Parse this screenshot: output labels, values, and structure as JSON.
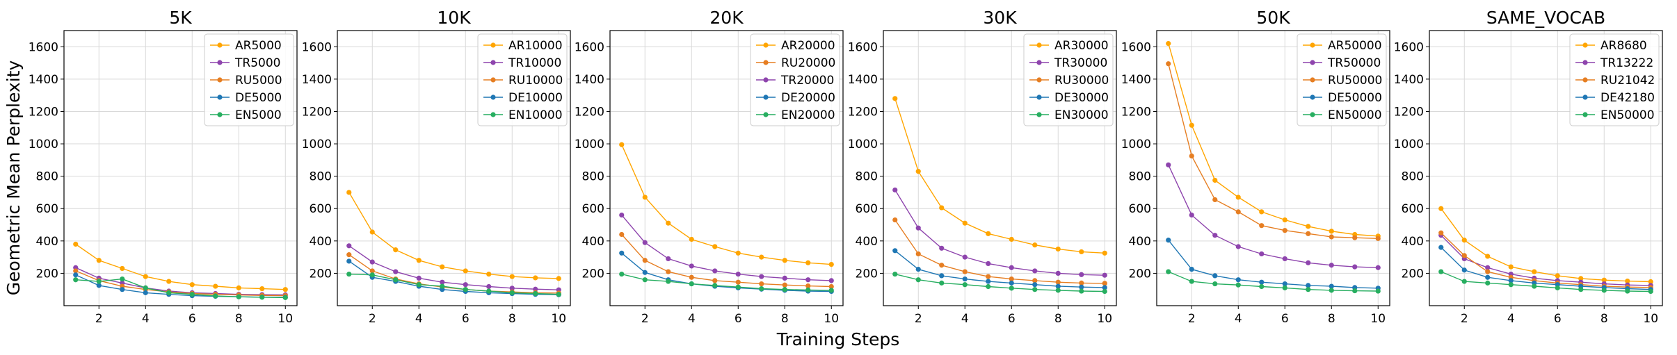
{
  "figure": {
    "ylabel": "Geometric Mean Perplexity",
    "xlabel": "Training Steps"
  },
  "chart_data": [
    {
      "type": "line",
      "title": "5K",
      "x": [
        1,
        2,
        3,
        4,
        5,
        6,
        7,
        8,
        9,
        10
      ],
      "xticks": [
        2,
        4,
        6,
        8,
        10
      ],
      "yticks": [
        200,
        400,
        600,
        800,
        1000,
        1200,
        1400,
        1600
      ],
      "xlim": [
        0.5,
        10.5
      ],
      "ylim": [
        0,
        1700
      ],
      "grid": true,
      "legend": "top-right",
      "series": [
        {
          "name": "AR5000",
          "color": "#ffa500",
          "values": [
            380,
            280,
            230,
            180,
            150,
            130,
            120,
            110,
            105,
            100
          ]
        },
        {
          "name": "TR5000",
          "color": "#8e44ad",
          "values": [
            235,
            170,
            140,
            110,
            90,
            80,
            75,
            70,
            68,
            67
          ]
        },
        {
          "name": "RU5000",
          "color": "#e67e22",
          "values": [
            215,
            155,
            120,
            100,
            85,
            75,
            70,
            66,
            63,
            62
          ]
        },
        {
          "name": "DE5000",
          "color": "#1f77b4",
          "values": [
            190,
            125,
            100,
            80,
            70,
            62,
            58,
            55,
            53,
            52
          ]
        },
        {
          "name": "EN5000",
          "color": "#27ae60",
          "values": [
            160,
            150,
            165,
            110,
            80,
            70,
            60,
            55,
            52,
            50
          ]
        }
      ]
    },
    {
      "type": "line",
      "title": "10K",
      "x": [
        1,
        2,
        3,
        4,
        5,
        6,
        7,
        8,
        9,
        10
      ],
      "xticks": [
        2,
        4,
        6,
        8,
        10
      ],
      "yticks": [
        200,
        400,
        600,
        800,
        1000,
        1200,
        1400,
        1600
      ],
      "xlim": [
        0.5,
        10.5
      ],
      "ylim": [
        0,
        1700
      ],
      "grid": true,
      "legend": "top-right",
      "series": [
        {
          "name": "AR10000",
          "color": "#ffa500",
          "values": [
            700,
            455,
            345,
            280,
            240,
            215,
            195,
            180,
            172,
            168
          ]
        },
        {
          "name": "TR10000",
          "color": "#8e44ad",
          "values": [
            370,
            270,
            210,
            170,
            145,
            130,
            118,
            108,
            102,
            98
          ]
        },
        {
          "name": "RU10000",
          "color": "#e67e22",
          "values": [
            315,
            215,
            165,
            135,
            115,
            100,
            90,
            85,
            80,
            78
          ]
        },
        {
          "name": "DE10000",
          "color": "#1f77b4",
          "values": [
            275,
            175,
            150,
            120,
            100,
            88,
            80,
            75,
            70,
            68
          ]
        },
        {
          "name": "EN10000",
          "color": "#27ae60",
          "values": [
            195,
            190,
            160,
            130,
            120,
            100,
            90,
            80,
            75,
            70
          ]
        }
      ]
    },
    {
      "type": "line",
      "title": "20K",
      "x": [
        1,
        2,
        3,
        4,
        5,
        6,
        7,
        8,
        9,
        10
      ],
      "xticks": [
        2,
        4,
        6,
        8,
        10
      ],
      "yticks": [
        200,
        400,
        600,
        800,
        1000,
        1200,
        1400,
        1600
      ],
      "xlim": [
        0.5,
        10.5
      ],
      "ylim": [
        0,
        1700
      ],
      "grid": true,
      "legend": "top-right",
      "series": [
        {
          "name": "AR20000",
          "color": "#ffa500",
          "values": [
            995,
            670,
            510,
            410,
            365,
            325,
            300,
            280,
            265,
            255
          ]
        },
        {
          "name": "RU20000",
          "color": "#e67e22",
          "values": [
            440,
            280,
            210,
            175,
            155,
            145,
            135,
            128,
            122,
            118
          ]
        },
        {
          "name": "TR20000",
          "color": "#8e44ad",
          "values": [
            560,
            390,
            290,
            245,
            215,
            195,
            180,
            170,
            160,
            155
          ]
        },
        {
          "name": "DE20000",
          "color": "#1f77b4",
          "values": [
            325,
            205,
            160,
            135,
            120,
            110,
            102,
            95,
            90,
            88
          ]
        },
        {
          "name": "EN20000",
          "color": "#27ae60",
          "values": [
            195,
            160,
            150,
            135,
            125,
            115,
            105,
            100,
            97,
            95
          ]
        }
      ]
    },
    {
      "type": "line",
      "title": "30K",
      "x": [
        1,
        2,
        3,
        4,
        5,
        6,
        7,
        8,
        9,
        10
      ],
      "xticks": [
        2,
        4,
        6,
        8,
        10
      ],
      "yticks": [
        200,
        400,
        600,
        800,
        1000,
        1200,
        1400,
        1600
      ],
      "xlim": [
        0.5,
        10.5
      ],
      "ylim": [
        0,
        1700
      ],
      "grid": true,
      "legend": "top-right",
      "series": [
        {
          "name": "AR30000",
          "color": "#ffa500",
          "values": [
            1280,
            830,
            605,
            510,
            445,
            410,
            375,
            350,
            333,
            325
          ]
        },
        {
          "name": "TR30000",
          "color": "#8e44ad",
          "values": [
            715,
            480,
            355,
            300,
            260,
            235,
            215,
            200,
            192,
            188
          ]
        },
        {
          "name": "RU30000",
          "color": "#e67e22",
          "values": [
            530,
            320,
            250,
            210,
            180,
            165,
            155,
            145,
            140,
            138
          ]
        },
        {
          "name": "DE30000",
          "color": "#1f77b4",
          "values": [
            340,
            225,
            185,
            165,
            150,
            140,
            130,
            120,
            115,
            112
          ]
        },
        {
          "name": "EN30000",
          "color": "#27ae60",
          "values": [
            195,
            160,
            140,
            130,
            118,
            108,
            100,
            95,
            90,
            88
          ]
        }
      ]
    },
    {
      "type": "line",
      "title": "50K",
      "x": [
        1,
        2,
        3,
        4,
        5,
        6,
        7,
        8,
        9,
        10
      ],
      "xticks": [
        2,
        4,
        6,
        8,
        10
      ],
      "yticks": [
        200,
        400,
        600,
        800,
        1000,
        1200,
        1400,
        1600
      ],
      "xlim": [
        0.5,
        10.5
      ],
      "ylim": [
        0,
        1700
      ],
      "grid": true,
      "legend": "top-right",
      "series": [
        {
          "name": "AR50000",
          "color": "#ffa500",
          "values": [
            1620,
            1115,
            775,
            670,
            580,
            530,
            490,
            460,
            440,
            430
          ]
        },
        {
          "name": "TR50000",
          "color": "#8e44ad",
          "values": [
            870,
            560,
            435,
            365,
            320,
            290,
            265,
            250,
            240,
            235
          ]
        },
        {
          "name": "RU50000",
          "color": "#e67e22",
          "values": [
            1495,
            925,
            655,
            580,
            495,
            465,
            445,
            425,
            420,
            415
          ]
        },
        {
          "name": "DE50000",
          "color": "#1f77b4",
          "values": [
            405,
            225,
            185,
            160,
            145,
            135,
            125,
            120,
            112,
            108
          ]
        },
        {
          "name": "EN50000",
          "color": "#27ae60",
          "values": [
            210,
            150,
            135,
            128,
            118,
            110,
            100,
            95,
            92,
            90
          ]
        }
      ]
    },
    {
      "type": "line",
      "title": "SAME_VOCAB",
      "x": [
        1,
        2,
        3,
        4,
        5,
        6,
        7,
        8,
        9,
        10
      ],
      "xticks": [
        2,
        4,
        6,
        8,
        10
      ],
      "yticks": [
        200,
        400,
        600,
        800,
        1000,
        1200,
        1400,
        1600
      ],
      "xlim": [
        0.5,
        10.5
      ],
      "ylim": [
        0,
        1700
      ],
      "grid": true,
      "legend": "top-right",
      "series": [
        {
          "name": "AR8680",
          "color": "#ffa500",
          "values": [
            600,
            405,
            305,
            240,
            210,
            185,
            168,
            158,
            152,
            148
          ]
        },
        {
          "name": "TR13222",
          "color": "#8e44ad",
          "values": [
            435,
            290,
            235,
            195,
            170,
            155,
            145,
            135,
            128,
            125
          ]
        },
        {
          "name": "RU21042",
          "color": "#e67e22",
          "values": [
            450,
            310,
            210,
            175,
            155,
            140,
            130,
            120,
            115,
            112
          ]
        },
        {
          "name": "DE42180",
          "color": "#1f77b4",
          "values": [
            360,
            220,
            175,
            155,
            140,
            130,
            120,
            112,
            105,
            100
          ]
        },
        {
          "name": "EN50000",
          "color": "#27ae60",
          "values": [
            210,
            150,
            140,
            130,
            120,
            110,
            100,
            95,
            90,
            88
          ]
        }
      ]
    }
  ]
}
